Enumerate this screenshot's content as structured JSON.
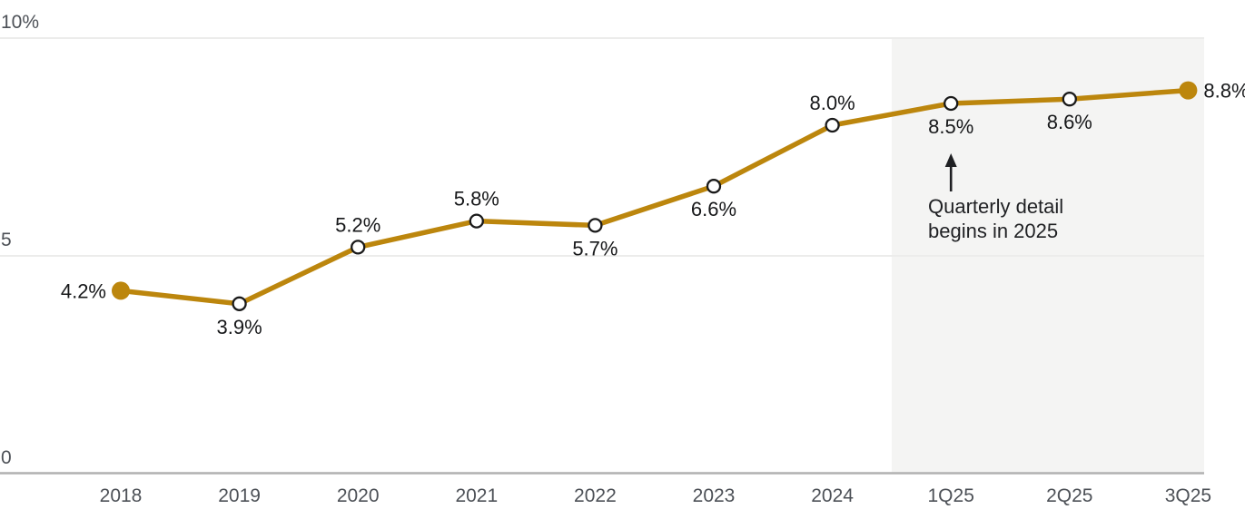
{
  "chart_data": {
    "type": "line",
    "title": "",
    "xlabel": "",
    "ylabel": "",
    "categories": [
      "2018",
      "2019",
      "2020",
      "2021",
      "2022",
      "2023",
      "2024",
      "1Q25",
      "2Q25",
      "3Q25"
    ],
    "values": [
      4.2,
      3.9,
      5.2,
      5.8,
      5.7,
      6.6,
      8.0,
      8.5,
      8.6,
      8.8
    ],
    "point_labels": [
      "4.2%",
      "3.9%",
      "5.2%",
      "5.8%",
      "5.7%",
      "6.6%",
      "8.0%",
      "8.5%",
      "8.6%",
      "8.8%"
    ],
    "label_placement": [
      "left",
      "below",
      "above",
      "above",
      "below",
      "below",
      "above",
      "below",
      "below",
      "right"
    ],
    "marker_style": [
      "solid",
      "open",
      "open",
      "open",
      "open",
      "open",
      "open",
      "open",
      "open",
      "solid"
    ],
    "ylim": [
      0,
      10
    ],
    "yticks": [
      {
        "value": 10,
        "label": "10%"
      },
      {
        "value": 5,
        "label": "5"
      },
      {
        "value": 0,
        "label": "0"
      }
    ],
    "grid": "horizontal",
    "legend": "none",
    "shaded_region": {
      "start_after_category": "2024",
      "covers": [
        "1Q25",
        "2Q25",
        "3Q25"
      ],
      "color": "#F4F4F3"
    },
    "annotation": {
      "line1": "Quarterly detail",
      "line2": "begins in 2025",
      "arrow_icon": "up-arrow",
      "points_to_category": "1Q25"
    },
    "colors": {
      "line": "#BC860D",
      "solid_marker": "#BC860D",
      "open_marker_fill": "#FFFFFF",
      "open_marker_stroke": "#1A1A1A",
      "grid_line": "#ECECEB",
      "axis_line": "#B1B1B1",
      "axis_text": "#4D5157",
      "point_label_text": "#17181A",
      "annotation_text": "#1F2023",
      "background": "#FFFFFF"
    }
  }
}
